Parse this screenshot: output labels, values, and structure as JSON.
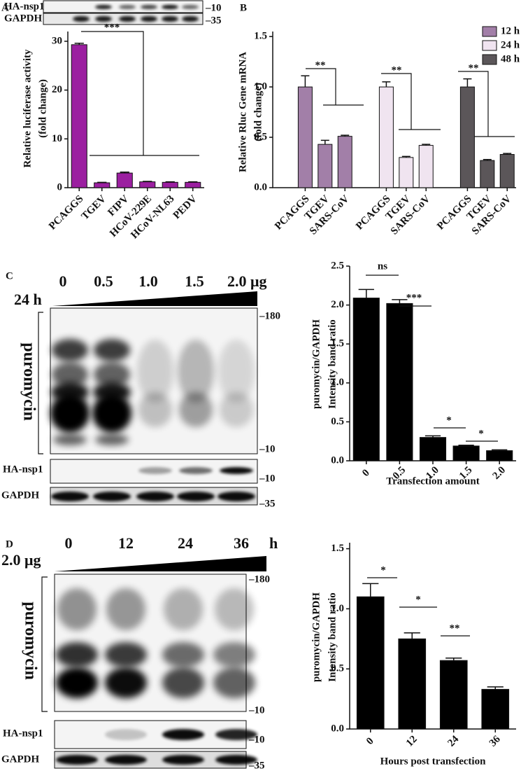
{
  "chart_data": [
    {
      "type": "bar",
      "panel": "A",
      "ylabel": [
        "Relative luciferase activity",
        "(fold change)"
      ],
      "categories": [
        "PCAGGS",
        "TGEV",
        "FIPV",
        "HCoV-229E",
        "HCoV-NL63",
        "PEDV"
      ],
      "values": [
        29.3,
        1.0,
        3.0,
        1.2,
        1.1,
        1.1
      ],
      "errors": [
        0.3,
        0.1,
        0.2,
        0.1,
        0.1,
        0.1
      ],
      "color": "#9b1fa0",
      "ylim": [
        0,
        32
      ],
      "yticks": [
        0,
        10,
        20,
        30
      ],
      "annotations": [
        "***"
      ]
    },
    {
      "type": "grouped_bar",
      "panel": "B",
      "ylabel": [
        "Relative Rluc Gene mRNA",
        "(fold change)"
      ],
      "categories": [
        "PCAGGS",
        "TGEV",
        "SARS-CoV"
      ],
      "series": [
        {
          "name": "12 h",
          "color": "#a27fa8",
          "values": [
            1.0,
            0.43,
            0.51
          ],
          "errors": [
            0.11,
            0.04,
            0.01
          ]
        },
        {
          "name": "24 h",
          "color": "#f0e4f0",
          "values": [
            1.0,
            0.3,
            0.42
          ],
          "errors": [
            0.05,
            0.01,
            0.01
          ]
        },
        {
          "name": "48 h",
          "color": "#5b5659",
          "values": [
            1.0,
            0.27,
            0.33
          ],
          "errors": [
            0.08,
            0.01,
            0.01
          ]
        }
      ],
      "ylim": [
        0,
        1.55
      ],
      "yticks": [
        {
          "value": 0,
          "label": "0.0"
        },
        0.5,
        {
          "value": 1,
          "label": "1.0"
        },
        1.5
      ],
      "annotations": [
        "**",
        "**",
        "**"
      ]
    },
    {
      "type": "bar",
      "panel": "C",
      "ylabel": [
        "puromycin/GAPDH",
        "Intensity band ratio"
      ],
      "xlabel": "Transfection amount",
      "categories": [
        "0",
        "0.5",
        "1.0",
        "1.5",
        "2.0"
      ],
      "values": [
        2.09,
        2.02,
        0.3,
        0.19,
        0.13
      ],
      "errors": [
        0.11,
        0.05,
        0.02,
        0.01,
        0.01
      ],
      "color": "#000000",
      "ylim": [
        0,
        2.5
      ],
      "yticks": [
        {
          "value": 0,
          "label": "0.0"
        },
        0.5,
        {
          "value": 1,
          "label": "1.0"
        },
        1.5,
        {
          "value": 2,
          "label": "2.0"
        },
        2.5
      ],
      "annotations": [
        "ns",
        "***",
        "*",
        "*"
      ]
    },
    {
      "type": "bar",
      "panel": "D",
      "ylabel": [
        "puromycin/GAPDH",
        "Intensity band ratio"
      ],
      "xlabel": "Hours post transfection",
      "categories": [
        "0",
        "12",
        "24",
        "36"
      ],
      "values": [
        1.1,
        0.75,
        0.57,
        0.33
      ],
      "errors": [
        0.11,
        0.05,
        0.02,
        0.02
      ],
      "color": "#000000",
      "ylim": [
        0,
        1.55
      ],
      "yticks": [
        {
          "value": 0,
          "label": "0.0"
        },
        0.5,
        {
          "value": 1,
          "label": "1.0"
        },
        1.5
      ],
      "annotations": [
        "*",
        "*",
        "**"
      ]
    }
  ],
  "blots": [
    {
      "rows": [
        "HA-nsp1",
        "GAPDH"
      ],
      "markers": [
        "–10",
        "–35"
      ]
    },
    {
      "condition": "24 h",
      "lanes": [
        "0",
        "0.5",
        "1.0",
        "1.5",
        "2.0 μg"
      ],
      "rows": [
        "puromycin",
        "HA-nsp1",
        "GAPDH"
      ],
      "markers": [
        "–180",
        "–10",
        "–10",
        "–35"
      ]
    },
    {
      "condition": "2.0 μg",
      "lanes": [
        "0",
        "12",
        "24",
        "36"
      ],
      "unit": "h",
      "rows": [
        "puromycin",
        "HA-nsp1",
        "GAPDH"
      ],
      "markers": [
        "–180",
        "–10",
        "–10",
        "–35"
      ]
    }
  ]
}
